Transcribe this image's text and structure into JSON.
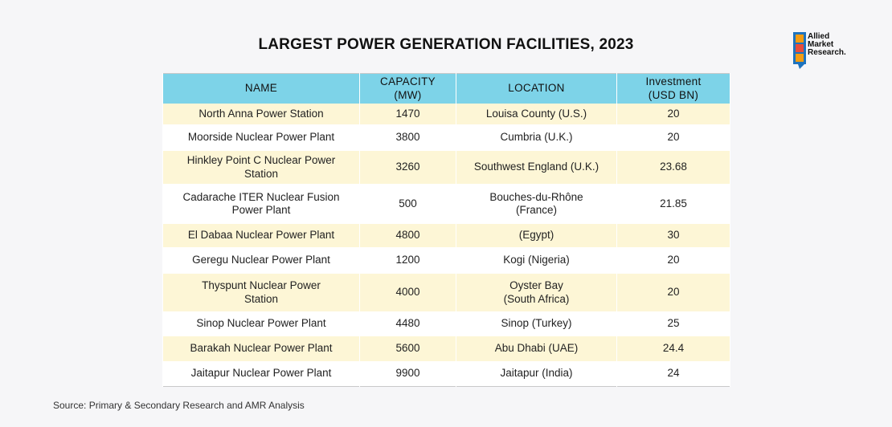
{
  "title": "LARGEST POWER GENERATION FACILITIES, 2023",
  "logo": {
    "line1": "Allied",
    "line2": "Market",
    "line3": "Research."
  },
  "source": "Source: Primary & Secondary Research and AMR Analysis",
  "chart_data": {
    "type": "table",
    "title": "LARGEST POWER GENERATION FACILITIES, 2023",
    "columns": [
      "NAME",
      "CAPACITY (MW)",
      "LOCATION",
      "Investment\n(USD BN)"
    ],
    "rows": [
      [
        "North Anna Power Station",
        "1470",
        "Louisa County (U.S.)",
        "20"
      ],
      [
        "Moorside Nuclear Power Plant",
        "3800",
        "Cumbria (U.K.)",
        "20"
      ],
      [
        "Hinkley Point C Nuclear Power\nStation",
        "3260",
        "Southwest England (U.K.)",
        "23.68"
      ],
      [
        "Cadarache ITER Nuclear Fusion\nPower Plant",
        "500",
        "Bouches-du-Rhône\n(France)",
        "21.85"
      ],
      [
        "El Dabaa Nuclear Power Plant",
        "4800",
        "(Egypt)",
        "30"
      ],
      [
        "Geregu Nuclear Power Plant",
        "1200",
        "Kogi (Nigeria)",
        "20"
      ],
      [
        "Thyspunt Nuclear Power\nStation",
        "4000",
        "Oyster Bay\n(South Africa)",
        "20"
      ],
      [
        "Sinop Nuclear Power Plant",
        "4480",
        "Sinop (Turkey)",
        "25"
      ],
      [
        "Barakah Nuclear Power Plant",
        "5600",
        "Abu Dhabi (UAE)",
        "24.4"
      ],
      [
        "Jaitapur Nuclear Power Plant",
        "9900",
        "Jaitapur (India)",
        "24"
      ]
    ]
  },
  "colors": {
    "header": "#7dd3e8",
    "row_odd": "#fdf6d6",
    "row_even": "#ffffff",
    "logo_blue": "#1e73be",
    "logo_orange": "#f39c12"
  }
}
